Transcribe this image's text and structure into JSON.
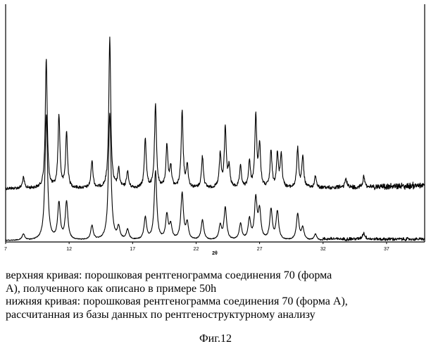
{
  "chart_data": {
    "type": "line",
    "title": "",
    "xlabel": "2θ",
    "ylabel": "",
    "xlim": [
      7,
      40
    ],
    "x_ticks": [
      7,
      12,
      17,
      22,
      27,
      32,
      37
    ],
    "grid": false,
    "legend": "none",
    "series": [
      {
        "peaks": [
          [
            8.4,
            0.07
          ],
          [
            10.2,
            0.86
          ],
          [
            11.2,
            0.48
          ],
          [
            11.8,
            0.37
          ],
          [
            13.8,
            0.18
          ],
          [
            15.2,
            1.0
          ],
          [
            15.9,
            0.12
          ],
          [
            16.6,
            0.11
          ],
          [
            18.0,
            0.33
          ],
          [
            18.8,
            0.55
          ],
          [
            19.7,
            0.28
          ],
          [
            20.0,
            0.14
          ],
          [
            20.9,
            0.51
          ],
          [
            21.3,
            0.15
          ],
          [
            22.5,
            0.21
          ],
          [
            23.9,
            0.22
          ],
          [
            24.3,
            0.4
          ],
          [
            24.6,
            0.13
          ],
          [
            25.5,
            0.14
          ],
          [
            26.2,
            0.17
          ],
          [
            26.7,
            0.47
          ],
          [
            27.0,
            0.28
          ],
          [
            27.9,
            0.24
          ],
          [
            28.4,
            0.22
          ],
          [
            28.7,
            0.22
          ],
          [
            30.0,
            0.26
          ],
          [
            30.4,
            0.21
          ],
          [
            31.4,
            0.08
          ],
          [
            33.8,
            0.06
          ],
          [
            35.2,
            0.07
          ]
        ]
      },
      {
        "peaks": [
          [
            8.4,
            0.03
          ],
          [
            10.2,
            0.62
          ],
          [
            11.2,
            0.18
          ],
          [
            11.8,
            0.19
          ],
          [
            13.8,
            0.07
          ],
          [
            15.2,
            0.63
          ],
          [
            15.9,
            0.06
          ],
          [
            16.6,
            0.05
          ],
          [
            18.0,
            0.11
          ],
          [
            18.8,
            0.34
          ],
          [
            19.7,
            0.12
          ],
          [
            20.0,
            0.07
          ],
          [
            20.9,
            0.23
          ],
          [
            21.3,
            0.08
          ],
          [
            22.5,
            0.1
          ],
          [
            23.9,
            0.07
          ],
          [
            24.3,
            0.16
          ],
          [
            25.5,
            0.08
          ],
          [
            26.2,
            0.1
          ],
          [
            26.7,
            0.2
          ],
          [
            27.0,
            0.14
          ],
          [
            27.9,
            0.15
          ],
          [
            28.4,
            0.14
          ],
          [
            30.0,
            0.13
          ],
          [
            30.4,
            0.06
          ],
          [
            31.4,
            0.03
          ],
          [
            35.2,
            0.03
          ]
        ]
      }
    ]
  },
  "caption": {
    "line1": "верхняя кривая: порошковая рентгенограмма соединения 70 (форма",
    "line2": "А), полученного как описано в примере 50h",
    "line3": "нижняя кривая: порошковая рентгенограмма соединения 70 (форма А),",
    "line4": "рассчитанная из базы данных по рентгеноструктурному анализу"
  },
  "figure_label": "Фиг.12"
}
